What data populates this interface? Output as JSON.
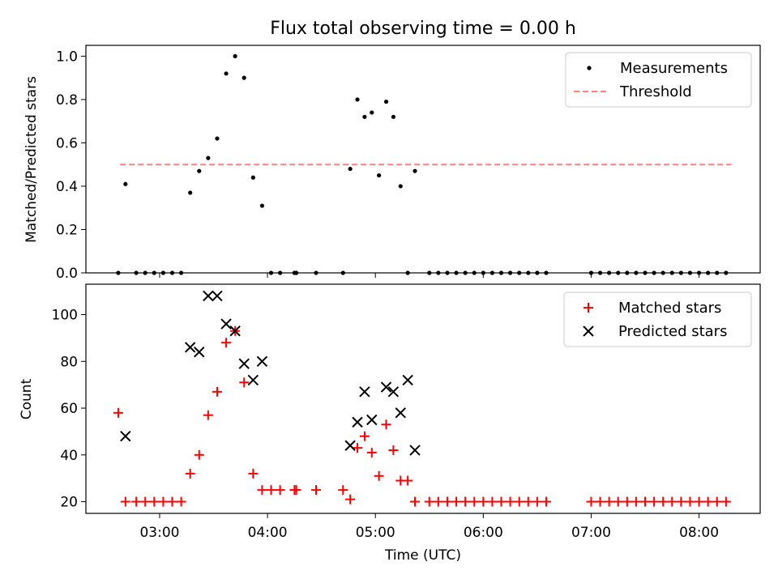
{
  "title": "Flux total observing time = 0.00 h",
  "chart_data": [
    {
      "type": "scatter",
      "title": "Flux total observing time = 0.00 h",
      "xlabel": "",
      "ylabel": "Matched/Predicted stars",
      "xlim": [
        "02:19",
        "08:34"
      ],
      "ylim": [
        0,
        1.05
      ],
      "xticks": [
        "03:00",
        "04:00",
        "05:00",
        "06:00",
        "07:00",
        "08:00"
      ],
      "yticks": [
        "0.0",
        "0.2",
        "0.4",
        "0.6",
        "0.8",
        "1.0"
      ],
      "legend": "top-right",
      "grid": false,
      "series": [
        {
          "name": "Measurements",
          "kind": "points",
          "color": "#000000",
          "x": [
            "02:37",
            "02:41",
            "02:47",
            "02:52",
            "02:57",
            "03:02",
            "03:07",
            "03:12",
            "03:17",
            "03:22",
            "03:27",
            "03:32",
            "03:37",
            "03:42",
            "03:47",
            "03:52",
            "03:57",
            "04:02",
            "04:07",
            "04:15",
            "04:16",
            "04:27",
            "04:42",
            "04:46",
            "04:50",
            "04:54",
            "04:58",
            "05:02",
            "05:06",
            "05:10",
            "05:14",
            "05:18",
            "05:22",
            "05:30",
            "05:35",
            "05:40",
            "05:45",
            "05:50",
            "05:55",
            "06:00",
            "06:05",
            "06:10",
            "06:15",
            "06:20",
            "06:25",
            "06:30",
            "06:35",
            "07:00",
            "07:05",
            "07:10",
            "07:15",
            "07:20",
            "07:25",
            "07:30",
            "07:35",
            "07:40",
            "07:45",
            "07:50",
            "07:55",
            "08:00",
            "08:05",
            "08:10",
            "08:15"
          ],
          "y": [
            0,
            0.41,
            0,
            0,
            0,
            0,
            0,
            0,
            0.37,
            0.47,
            0.53,
            0.62,
            0.92,
            1.0,
            0.9,
            0.44,
            0.31,
            0,
            0,
            0,
            0,
            0,
            0,
            0.48,
            0.8,
            0.72,
            0.74,
            0.45,
            0.79,
            0.72,
            0.4,
            0,
            0.47,
            0,
            0,
            0,
            0,
            0,
            0,
            0,
            0,
            0,
            0,
            0,
            0,
            0,
            0,
            0,
            0,
            0,
            0,
            0,
            0,
            0,
            0,
            0,
            0,
            0,
            0,
            0,
            0,
            0,
            0
          ]
        },
        {
          "name": "Threshold",
          "kind": "dashed-line",
          "color": "#ff7f7f",
          "x": [
            "02:38",
            "08:18"
          ],
          "y": [
            0.5,
            0.5
          ]
        }
      ]
    },
    {
      "type": "scatter",
      "title": "",
      "xlabel": "Time (UTC)",
      "ylabel": "Count",
      "xlim": [
        "02:19",
        "08:34"
      ],
      "ylim": [
        15,
        113
      ],
      "xticks": [
        "03:00",
        "04:00",
        "05:00",
        "06:00",
        "07:00",
        "08:00"
      ],
      "yticks": [
        "20",
        "40",
        "60",
        "80",
        "100"
      ],
      "legend": "top-right",
      "grid": false,
      "series": [
        {
          "name": "Matched stars",
          "kind": "plus",
          "color": "#ff0000",
          "x": [
            "02:37",
            "02:41",
            "02:47",
            "02:52",
            "02:57",
            "03:02",
            "03:07",
            "03:12",
            "03:17",
            "03:22",
            "03:27",
            "03:32",
            "03:37",
            "03:42",
            "03:47",
            "03:52",
            "03:57",
            "04:02",
            "04:07",
            "04:15",
            "04:16",
            "04:27",
            "04:42",
            "04:46",
            "04:50",
            "04:54",
            "04:58",
            "05:02",
            "05:06",
            "05:10",
            "05:14",
            "05:18",
            "05:22",
            "05:30",
            "05:35",
            "05:40",
            "05:45",
            "05:50",
            "05:55",
            "06:00",
            "06:05",
            "06:10",
            "06:15",
            "06:20",
            "06:25",
            "06:30",
            "06:35",
            "07:00",
            "07:05",
            "07:10",
            "07:15",
            "07:20",
            "07:25",
            "07:30",
            "07:35",
            "07:40",
            "07:45",
            "07:50",
            "07:55",
            "08:00",
            "08:05",
            "08:10",
            "08:15"
          ],
          "y": [
            58,
            20,
            20,
            20,
            20,
            20,
            20,
            20,
            32,
            40,
            57,
            67,
            88,
            93,
            71,
            32,
            25,
            25,
            25,
            25,
            25,
            25,
            25,
            21,
            43,
            48,
            41,
            31,
            53,
            42,
            29,
            29,
            20,
            20,
            20,
            20,
            20,
            20,
            20,
            20,
            20,
            20,
            20,
            20,
            20,
            20,
            20,
            20,
            20,
            20,
            20,
            20,
            20,
            20,
            20,
            20,
            20,
            20,
            20,
            20,
            20,
            20,
            20
          ]
        },
        {
          "name": "Predicted stars",
          "kind": "x",
          "color": "#000000",
          "x": [
            "02:41",
            "03:17",
            "03:22",
            "03:27",
            "03:32",
            "03:37",
            "03:42",
            "03:47",
            "03:52",
            "03:57",
            "04:46",
            "04:50",
            "04:54",
            "04:58",
            "05:06",
            "05:10",
            "05:14",
            "05:18",
            "05:22"
          ],
          "y": [
            48,
            86,
            84,
            108,
            108,
            96,
            93,
            79,
            72,
            80,
            44,
            54,
            67,
            55,
            69,
            67,
            58,
            72,
            42
          ]
        }
      ]
    }
  ]
}
